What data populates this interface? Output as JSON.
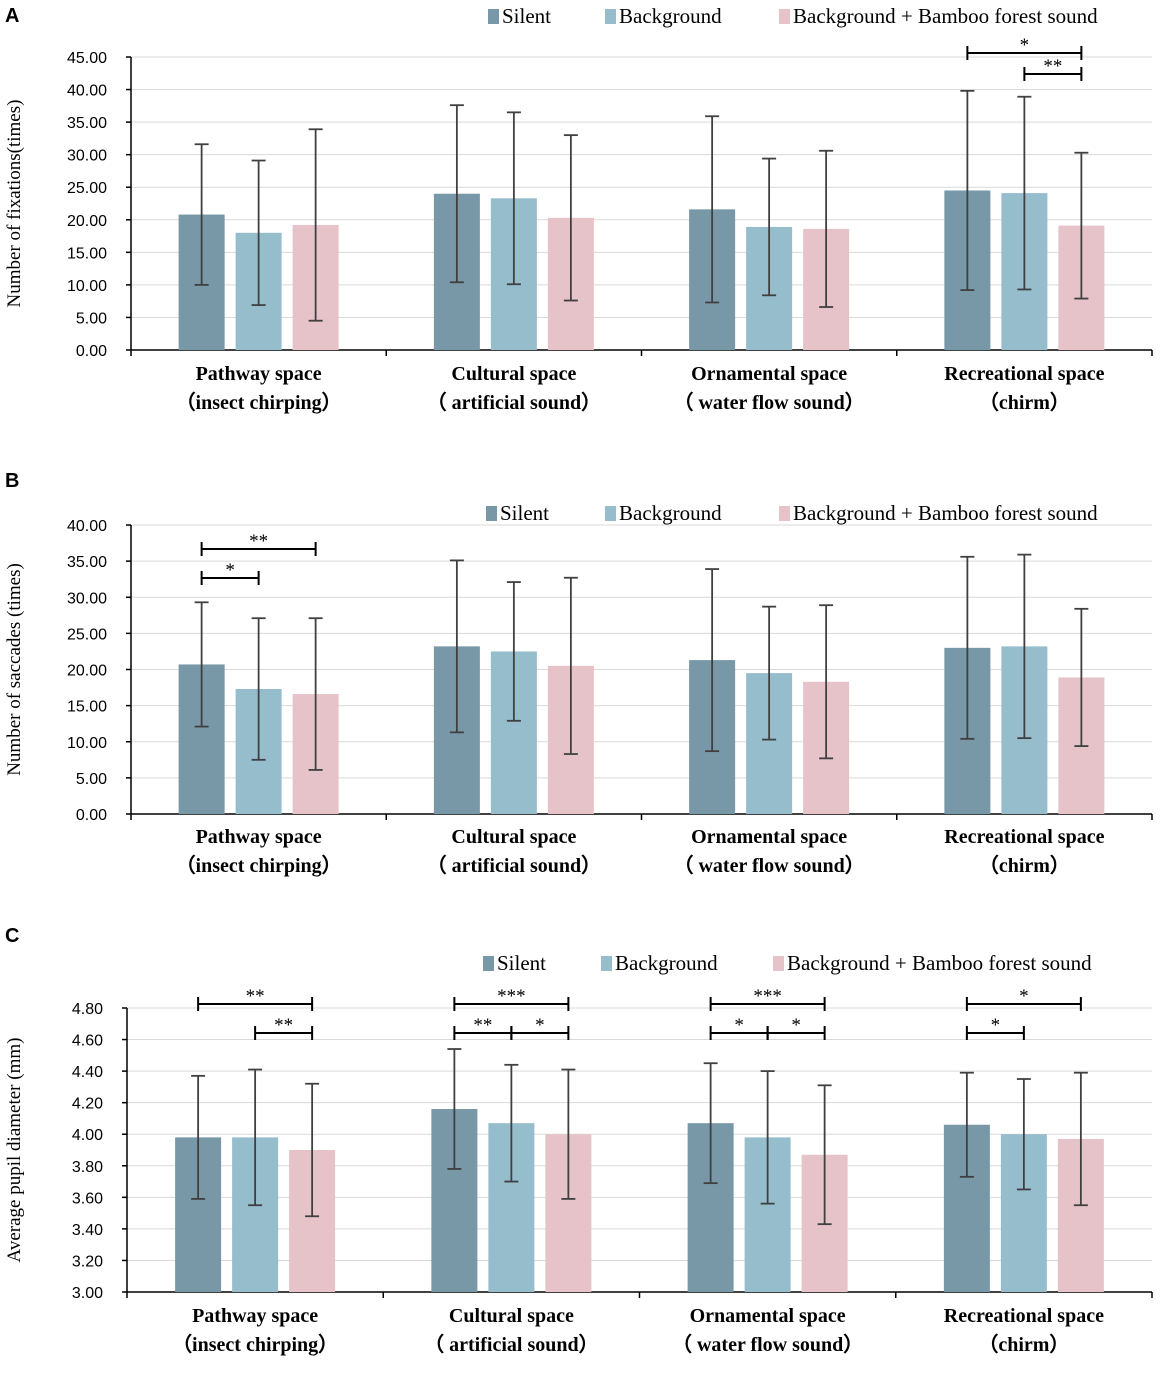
{
  "colors": {
    "silent": "#7898a8",
    "background": "#96bdcc",
    "bamboo": "#e6c3c9",
    "error": "#404040",
    "grid": "#d9d9d9",
    "axis": "#000000"
  },
  "chart_data": [
    {
      "panel": "A",
      "type": "bar",
      "ylabel": "Number of fixations(times)",
      "ylim": [
        0,
        45
      ],
      "tick_step": 5,
      "tick_labels": [
        "0.00",
        "5.00",
        "10.00",
        "15.00",
        "20.00",
        "25.00",
        "30.00",
        "35.00",
        "40.00",
        "45.00"
      ],
      "categories": [
        {
          "line1": "Pathway space",
          "line2": "（insect chirping）"
        },
        {
          "line1": "Cultural space",
          "line2": "（ artificial sound）"
        },
        {
          "line1": "Ornamental space",
          "line2": "（ water flow sound）"
        },
        {
          "line1": "Recreational space",
          "line2": "（chirm）"
        }
      ],
      "legend": [
        "Silent",
        "Background",
        "Background + Bamboo forest sound"
      ],
      "series": [
        {
          "name": "Silent",
          "values": [
            20.8,
            24.0,
            21.6,
            24.5
          ],
          "errors": [
            10.8,
            13.6,
            14.3,
            15.3
          ]
        },
        {
          "name": "Background",
          "values": [
            18.0,
            23.3,
            18.9,
            24.1
          ],
          "errors": [
            11.1,
            13.2,
            10.5,
            14.8
          ]
        },
        {
          "name": "Background + Bamboo forest sound",
          "values": [
            19.2,
            20.3,
            18.6,
            19.1
          ],
          "errors": [
            14.7,
            12.7,
            12.0,
            11.2
          ]
        }
      ],
      "significance": [
        {
          "category": 3,
          "from": 0,
          "to": 2,
          "label": "*",
          "level": 1
        },
        {
          "category": 3,
          "from": 1,
          "to": 2,
          "label": "**",
          "level": 0
        }
      ]
    },
    {
      "panel": "B",
      "type": "bar",
      "ylabel": "Number of saccades (times)",
      "ylim": [
        0,
        40
      ],
      "tick_step": 5,
      "tick_labels": [
        "0.00",
        "5.00",
        "10.00",
        "15.00",
        "20.00",
        "25.00",
        "30.00",
        "35.00",
        "40.00"
      ],
      "categories": [
        {
          "line1": "Pathway space",
          "line2": "（insect chirping）"
        },
        {
          "line1": "Cultural space",
          "line2": "（ artificial sound）"
        },
        {
          "line1": "Ornamental space",
          "line2": "（ water flow sound）"
        },
        {
          "line1": "Recreational space",
          "line2": "（chirm）"
        }
      ],
      "legend": [
        "Silent",
        "Background",
        "Background + Bamboo forest sound"
      ],
      "series": [
        {
          "name": "Silent",
          "values": [
            20.7,
            23.2,
            21.3,
            23.0
          ],
          "errors": [
            8.6,
            11.9,
            12.6,
            12.6
          ]
        },
        {
          "name": "Background",
          "values": [
            17.3,
            22.5,
            19.5,
            23.2
          ],
          "errors": [
            9.8,
            9.6,
            9.2,
            12.7
          ]
        },
        {
          "name": "Background + Bamboo forest sound",
          "values": [
            16.6,
            20.5,
            18.3,
            18.9
          ],
          "errors": [
            10.5,
            12.2,
            10.6,
            9.5
          ]
        }
      ],
      "significance": [
        {
          "category": 0,
          "from": 0,
          "to": 1,
          "label": "*",
          "level": 0
        },
        {
          "category": 0,
          "from": 0,
          "to": 2,
          "label": "**",
          "level": 1
        }
      ]
    },
    {
      "panel": "C",
      "type": "bar",
      "ylabel": "Average pupil diameter (mm)",
      "ylim": [
        3.0,
        4.8
      ],
      "tick_step": 0.2,
      "tick_labels": [
        "3.00",
        "3.20",
        "3.40",
        "3.60",
        "3.80",
        "4.00",
        "4.20",
        "4.40",
        "4.60",
        "4.80"
      ],
      "categories": [
        {
          "line1": "Pathway space",
          "line2": "（insect chirping）"
        },
        {
          "line1": "Cultural space",
          "line2": "（ artificial sound）"
        },
        {
          "line1": "Ornamental space",
          "line2": "（ water flow sound）"
        },
        {
          "line1": "Recreational space",
          "line2": "（chirm）"
        }
      ],
      "legend": [
        "Silent",
        "Background",
        "Background + Bamboo forest sound"
      ],
      "series": [
        {
          "name": "Silent",
          "values": [
            3.98,
            4.16,
            4.07,
            4.06
          ],
          "errors": [
            0.39,
            0.38,
            0.38,
            0.33
          ]
        },
        {
          "name": "Background",
          "values": [
            3.98,
            4.07,
            3.98,
            4.0
          ],
          "errors": [
            0.43,
            0.37,
            0.42,
            0.35
          ]
        },
        {
          "name": "Background + Bamboo forest sound",
          "values": [
            3.9,
            4.0,
            3.87,
            3.97
          ],
          "errors": [
            0.42,
            0.41,
            0.44,
            0.42
          ]
        }
      ],
      "significance": [
        {
          "category": 0,
          "from": 0,
          "to": 2,
          "label": "**",
          "level": 1
        },
        {
          "category": 0,
          "from": 1,
          "to": 2,
          "label": "**",
          "level": 0
        },
        {
          "category": 1,
          "from": 0,
          "to": 2,
          "label": "***",
          "level": 1
        },
        {
          "category": 1,
          "from": 0,
          "to": 1,
          "label": "**",
          "level": 0
        },
        {
          "category": 1,
          "from": 1,
          "to": 2,
          "label": "*",
          "level": 0
        },
        {
          "category": 2,
          "from": 0,
          "to": 2,
          "label": "***",
          "level": 1
        },
        {
          "category": 2,
          "from": 0,
          "to": 1,
          "label": "*",
          "level": 0
        },
        {
          "category": 2,
          "from": 1,
          "to": 2,
          "label": "*",
          "level": 0
        },
        {
          "category": 3,
          "from": 0,
          "to": 2,
          "label": "*",
          "level": 1
        },
        {
          "category": 3,
          "from": 0,
          "to": 1,
          "label": "*",
          "level": 0
        }
      ]
    }
  ]
}
